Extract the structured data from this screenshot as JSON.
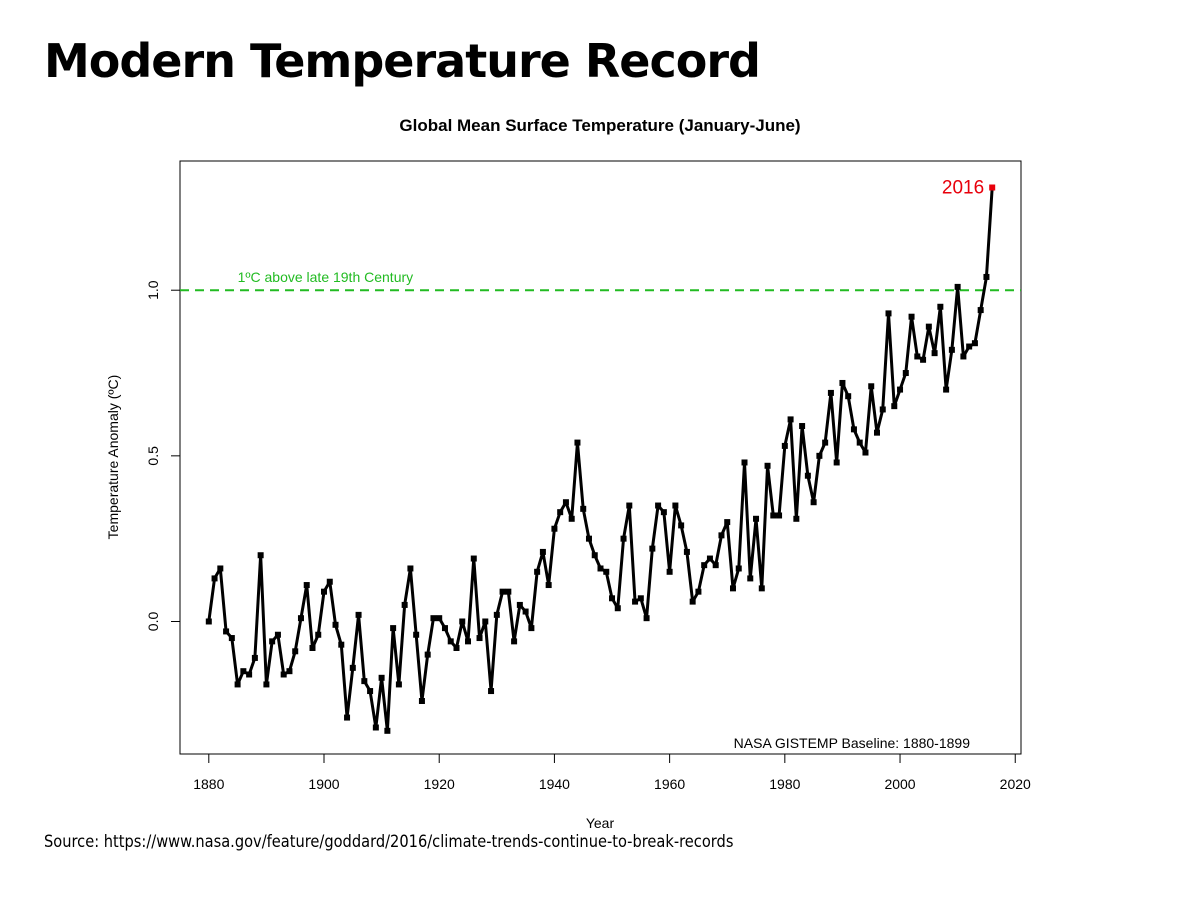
{
  "slide": {
    "title": "Modern Temperature Record",
    "source": "Source: https://www.nasa.gov/feature/goddard/2016/climate-trends-continue-to-break-records"
  },
  "colors": {
    "series": "#000000",
    "highlight": "#e8000b",
    "threshold": "#22bb22"
  },
  "chart_data": {
    "type": "line",
    "title": "Global Mean Surface Temperature (January-June)",
    "xlabel": "Year",
    "ylabel": "Temperature Anomaly (ºC)",
    "xlim": [
      1875,
      2021
    ],
    "ylim": [
      -0.4,
      1.39
    ],
    "xticks": [
      1880,
      1900,
      1920,
      1940,
      1960,
      1980,
      2000,
      2020
    ],
    "yticks": [
      0.0,
      0.5,
      1.0
    ],
    "ytick_labels": [
      "0.0",
      "0.5",
      "1.0"
    ],
    "grid": false,
    "threshold": {
      "value": 1.0,
      "label": "1ºC above late 19th Century"
    },
    "annotation": "NASA GISTEMP Baseline: 1880-1899",
    "highlight": {
      "x": 2016,
      "label": "2016"
    },
    "series": [
      {
        "x_start": 1880,
        "values": [
          0.0,
          0.13,
          0.16,
          -0.03,
          -0.05,
          -0.19,
          -0.15,
          -0.16,
          -0.11,
          0.2,
          -0.19,
          -0.06,
          -0.04,
          -0.16,
          -0.15,
          -0.09,
          0.01,
          0.11,
          -0.08,
          -0.04,
          0.09,
          0.12,
          -0.01,
          -0.07,
          -0.29,
          -0.14,
          0.02,
          -0.18,
          -0.21,
          -0.32,
          -0.17,
          -0.33,
          -0.02,
          -0.19,
          0.05,
          0.16,
          -0.04,
          -0.24,
          -0.1,
          0.01,
          0.01,
          -0.02,
          -0.06,
          -0.08,
          0.0,
          -0.06,
          0.19,
          -0.05,
          0.0,
          -0.21,
          0.02,
          0.09,
          0.09,
          -0.06,
          0.05,
          0.03,
          -0.02,
          0.15,
          0.21,
          0.11,
          0.28,
          0.33,
          0.36,
          0.31,
          0.54,
          0.34,
          0.25,
          0.2,
          0.16,
          0.15,
          0.07,
          0.04,
          0.25,
          0.35,
          0.06,
          0.07,
          0.01,
          0.22,
          0.35,
          0.33,
          0.15,
          0.35,
          0.29,
          0.21,
          0.06,
          0.09,
          0.17,
          0.19,
          0.17,
          0.26,
          0.3,
          0.1,
          0.16,
          0.48,
          0.13,
          0.31,
          0.1,
          0.47,
          0.32,
          0.32,
          0.53,
          0.61,
          0.31,
          0.59,
          0.44,
          0.36,
          0.5,
          0.54,
          0.69,
          0.48,
          0.72,
          0.68,
          0.58,
          0.54,
          0.51,
          0.71,
          0.57,
          0.64,
          0.93,
          0.65,
          0.7,
          0.75,
          0.92,
          0.8,
          0.79,
          0.89,
          0.81,
          0.95,
          0.7,
          0.82,
          1.01,
          0.8,
          0.83,
          0.84,
          0.94,
          1.04,
          1.31
        ]
      }
    ]
  }
}
